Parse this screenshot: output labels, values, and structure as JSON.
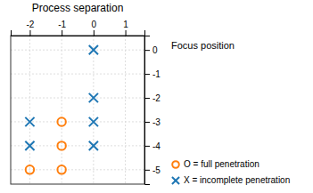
{
  "chart_data": {
    "type": "scatter",
    "x_label": "Process separation",
    "y_label": "Focus position",
    "xlim": [
      -2.6,
      1.6
    ],
    "ylim": [
      -5.6,
      0.6
    ],
    "xticks": [
      -2,
      -1,
      0,
      1
    ],
    "yticks": [
      0,
      -1,
      -2,
      -3,
      -4,
      -5
    ],
    "grid": true,
    "legend": "bottom right",
    "series": [
      {
        "name": "X = incomplete penetration",
        "marker": "x",
        "x": [
          0,
          0,
          -2,
          0,
          -2,
          0
        ],
        "values": [
          0,
          -2,
          -3,
          -3,
          -4,
          -4
        ]
      },
      {
        "name": "O = full penetration",
        "marker": "o",
        "x": [
          -1,
          -1,
          -2,
          -1
        ],
        "values": [
          -3,
          -4,
          -5,
          -5
        ]
      }
    ]
  }
}
